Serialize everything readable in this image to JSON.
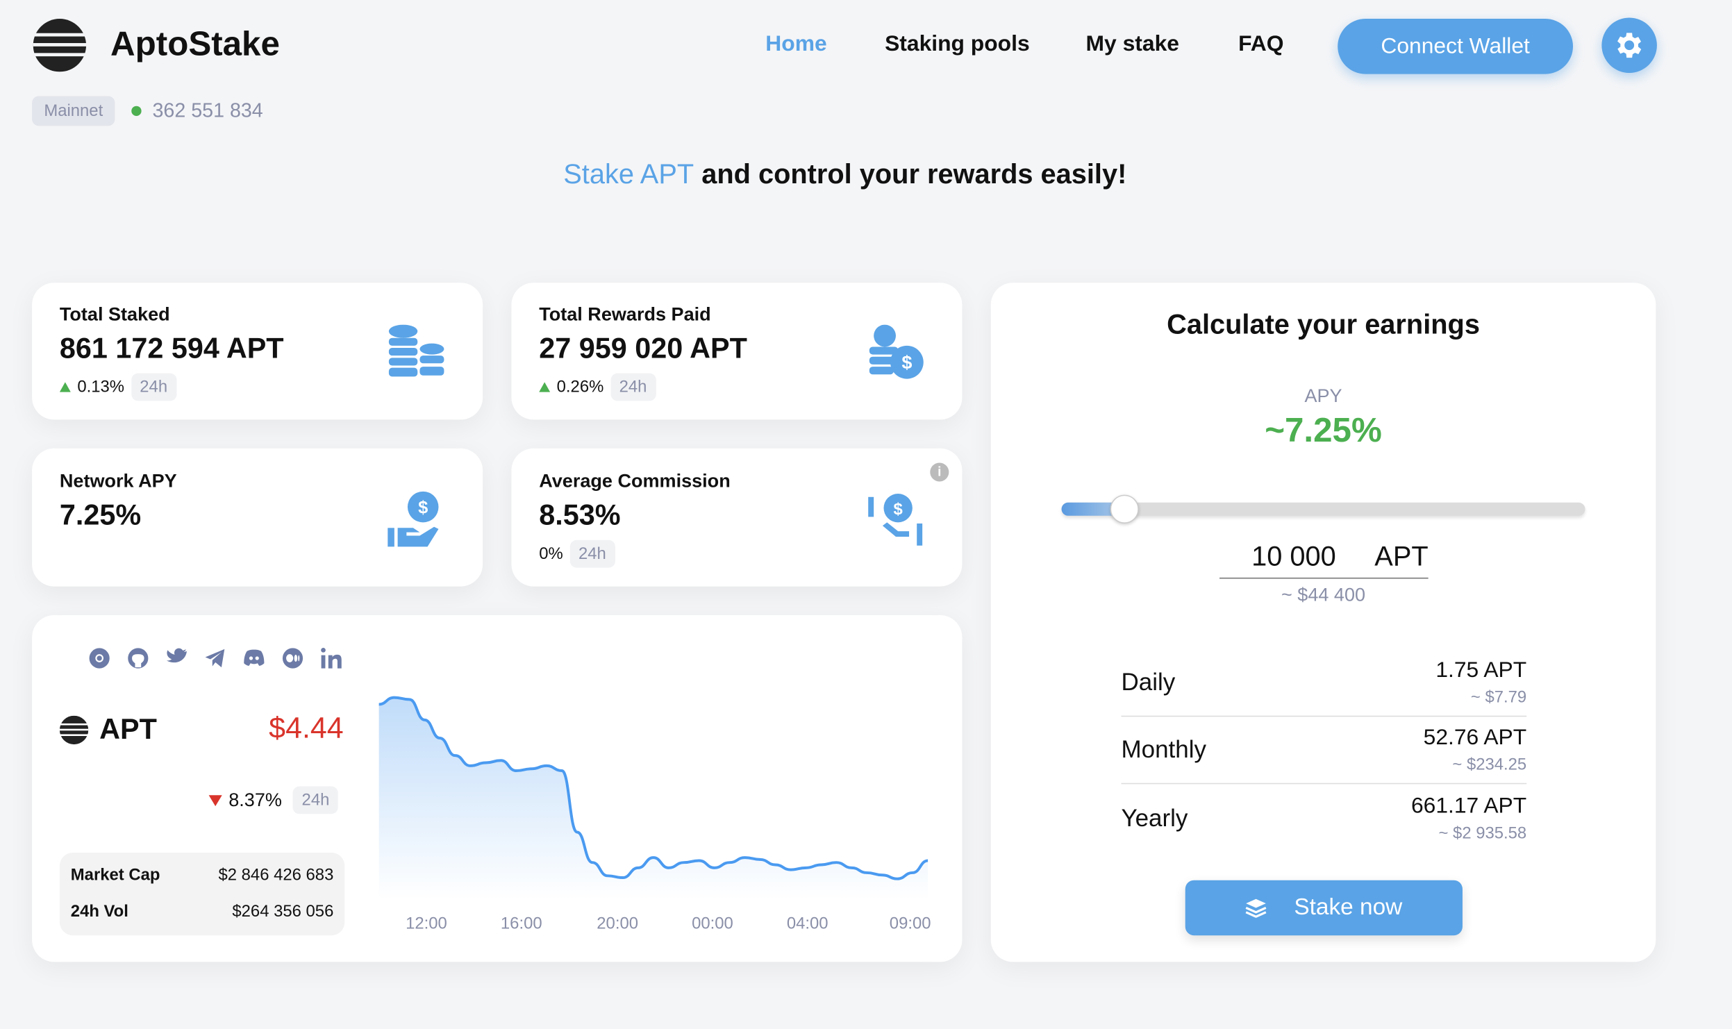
{
  "header": {
    "app_name": "AptoStake",
    "nav": [
      {
        "label": "Home",
        "active": true
      },
      {
        "label": "Staking pools"
      },
      {
        "label": "My stake"
      },
      {
        "label": "FAQ"
      }
    ],
    "connect_label": "Connect Wallet",
    "network_badge": "Mainnet",
    "block_height": "362 551 834",
    "accent": "#5aa3e6"
  },
  "hero": {
    "highlight": "Stake APT",
    "rest": "and control your rewards easily!"
  },
  "stats": [
    {
      "label": "Total Staked",
      "value": "861 172 594 APT",
      "change": "0.13%",
      "period": "24h",
      "icon": "coins-stack-icon"
    },
    {
      "label": "Total Rewards Paid",
      "value": "27 959 020 APT",
      "change": "0.26%",
      "period": "24h",
      "icon": "coins-dollar-icon"
    },
    {
      "label": "Network APY",
      "value": "7.25%",
      "icon": "hand-dollar-icon"
    },
    {
      "label": "Average Commission",
      "value": "8.53%",
      "change": "0%",
      "period": "24h",
      "icon": "hand-coin-icon"
    }
  ],
  "market": {
    "symbol": "APT",
    "price": "$4.44",
    "change": "8.37%",
    "period": "24h",
    "market_cap_label": "Market Cap",
    "market_cap": "$2 846 426 683",
    "vol_label": "24h Vol",
    "vol": "$264 356 056",
    "socials": [
      "chrome-icon",
      "github-icon",
      "twitter-icon",
      "telegram-icon",
      "discord-icon",
      "medium-icon",
      "linkedin-icon"
    ]
  },
  "chart_data": {
    "type": "area",
    "title": "",
    "xlabel": "",
    "ylabel": "",
    "x_ticks": [
      "12:00",
      "16:00",
      "20:00",
      "00:00",
      "04:00",
      "09:00"
    ],
    "ylim": [
      4.37,
      4.9
    ],
    "grid": false,
    "color": "#4a9af0",
    "values": [
      4.857,
      4.875,
      4.87,
      4.816,
      4.768,
      4.722,
      4.695,
      4.703,
      4.709,
      4.682,
      4.687,
      4.695,
      4.682,
      4.52,
      4.44,
      4.405,
      4.4,
      4.426,
      4.453,
      4.426,
      4.44,
      4.445,
      4.426,
      4.44,
      4.453,
      4.448,
      4.434,
      4.421,
      4.426,
      4.434,
      4.44,
      4.426,
      4.413,
      4.407,
      4.397,
      4.413,
      4.445
    ]
  },
  "calculator": {
    "title": "Calculate your earnings",
    "apy_label": "APY",
    "apy": "~7.25%",
    "slider_fraction": 0.12,
    "amount": "10 000",
    "unit": "APT",
    "amount_usd": "~ $44 400",
    "rows": [
      {
        "name": "Daily",
        "apt": "1.75 APT",
        "usd": "~ $7.79"
      },
      {
        "name": "Monthly",
        "apt": "52.76 APT",
        "usd": "~ $234.25"
      },
      {
        "name": "Yearly",
        "apt": "661.17 APT",
        "usd": "~ $2 935.58"
      }
    ],
    "stake_label": "Stake now"
  }
}
